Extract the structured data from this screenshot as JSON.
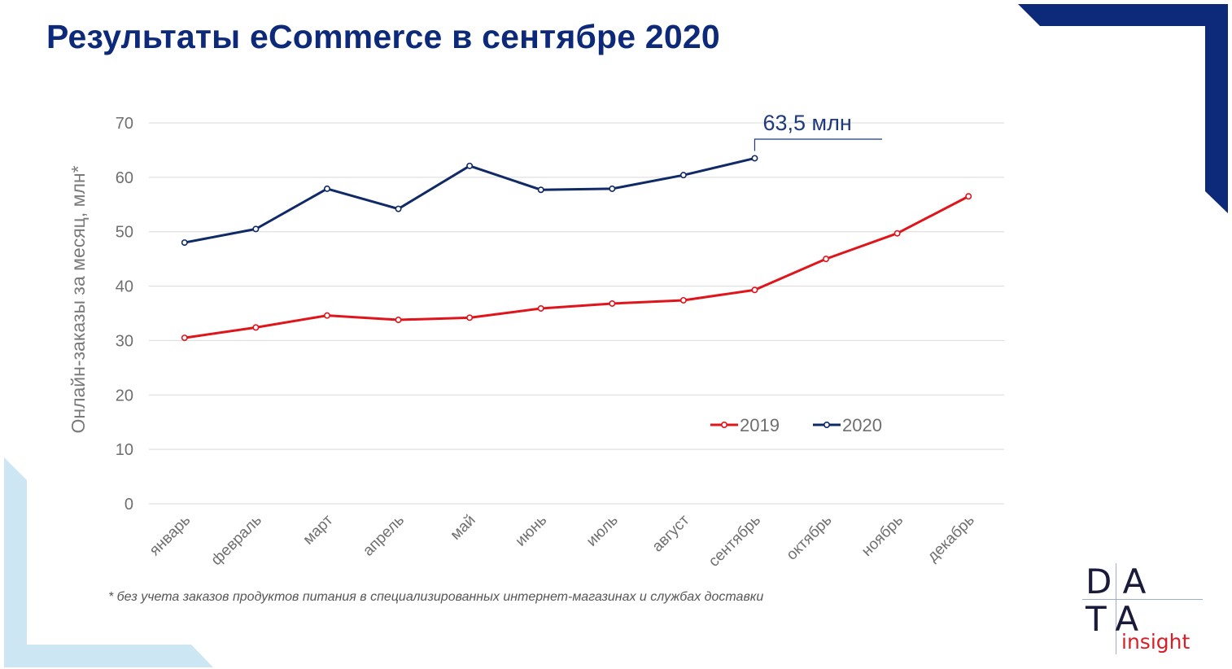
{
  "slide": {
    "title": "Результаты eCommerce в сентябре 2020",
    "footnote": "* без учета заказов продуктов питания в специализированных интернет-магазинах и службах доставки"
  },
  "logo": {
    "row1": "DA",
    "row2": "TA",
    "word": "insight",
    "colors": {
      "letters": "#1a1a3a",
      "word": "#d81f26"
    }
  },
  "colors": {
    "title": "#0d2a7a",
    "corner_top_right": "#0d2a7a",
    "corner_bottom_left": "#cce6f3"
  },
  "chart_data": {
    "type": "line",
    "title": "",
    "xlabel": "",
    "ylabel": "Онлайн-заказы за месяц, млн*",
    "ylim": [
      0,
      70
    ],
    "yticks": [
      0,
      10,
      20,
      30,
      40,
      50,
      60,
      70
    ],
    "grid": true,
    "legend_position": "bottom-right",
    "categories": [
      "январь",
      "февраль",
      "март",
      "апрель",
      "май",
      "июнь",
      "июль",
      "август",
      "сентябрь",
      "октябрь",
      "ноябрь",
      "декабрь"
    ],
    "series": [
      {
        "name": "2019",
        "color": "#e0151b",
        "values": [
          30.5,
          32.4,
          34.6,
          33.8,
          34.2,
          35.9,
          36.8,
          37.4,
          39.3,
          45.0,
          49.7,
          56.5
        ]
      },
      {
        "name": "2020",
        "color": "#0f2a66",
        "values": [
          48.0,
          50.5,
          57.9,
          54.2,
          62.1,
          57.7,
          57.9,
          60.4,
          63.5,
          null,
          null,
          null
        ]
      }
    ],
    "annotation": {
      "text": "63,5 млн",
      "series": "2020",
      "category": "сентябрь"
    }
  }
}
